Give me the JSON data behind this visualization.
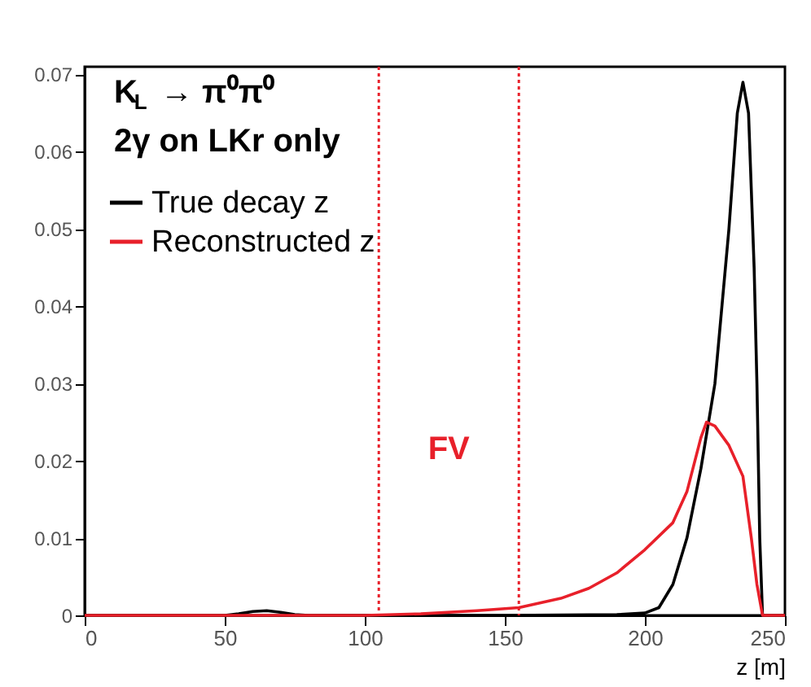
{
  "chart_data": {
    "type": "line",
    "xlabel": "z [m]",
    "annotations": [
      "K$_{L}$ → π⁰π⁰",
      "2γ on LKr only",
      "FV"
    ],
    "series": [
      {
        "name": "True decay z",
        "color": "#000000",
        "x": [
          0,
          50,
          55,
          60,
          65,
          70,
          75,
          80,
          100,
          150,
          190,
          200,
          205,
          210,
          215,
          220,
          225,
          230,
          233,
          235,
          237,
          239,
          240,
          241,
          242,
          250
        ],
        "values": [
          0,
          0,
          0.0002,
          0.0005,
          0.0006,
          0.0004,
          0.0001,
          0,
          0,
          0,
          0.0001,
          0.0003,
          0.001,
          0.004,
          0.01,
          0.019,
          0.03,
          0.05,
          0.065,
          0.069,
          0.065,
          0.045,
          0.03,
          0.01,
          0,
          0
        ]
      },
      {
        "name": "Reconstructed z",
        "color": "#e8202a",
        "x": [
          0,
          100,
          120,
          140,
          155,
          170,
          180,
          190,
          200,
          210,
          215,
          220,
          222,
          225,
          230,
          235,
          238,
          240,
          242,
          250
        ],
        "values": [
          0,
          0,
          0.0002,
          0.0006,
          0.001,
          0.0022,
          0.0035,
          0.0055,
          0.0085,
          0.012,
          0.016,
          0.023,
          0.025,
          0.0245,
          0.022,
          0.018,
          0.01,
          0.004,
          0,
          0
        ]
      }
    ],
    "ref_lines": [
      {
        "axis": "x",
        "value": 105,
        "color": "#e8202a",
        "line_style": "dotted"
      },
      {
        "axis": "x",
        "value": 155,
        "color": "#e8202a",
        "line_style": "dotted"
      }
    ],
    "xlim": [
      0,
      250
    ],
    "xticks": [
      0,
      50,
      100,
      150,
      200,
      250
    ],
    "ylim": [
      0,
      0.071
    ],
    "yticks": [
      0,
      0.01,
      0.02,
      0.03,
      0.04,
      0.05,
      0.06,
      0.07
    ],
    "grid": false,
    "legend": "top left",
    "line_style": "solid",
    "marker": "none"
  }
}
